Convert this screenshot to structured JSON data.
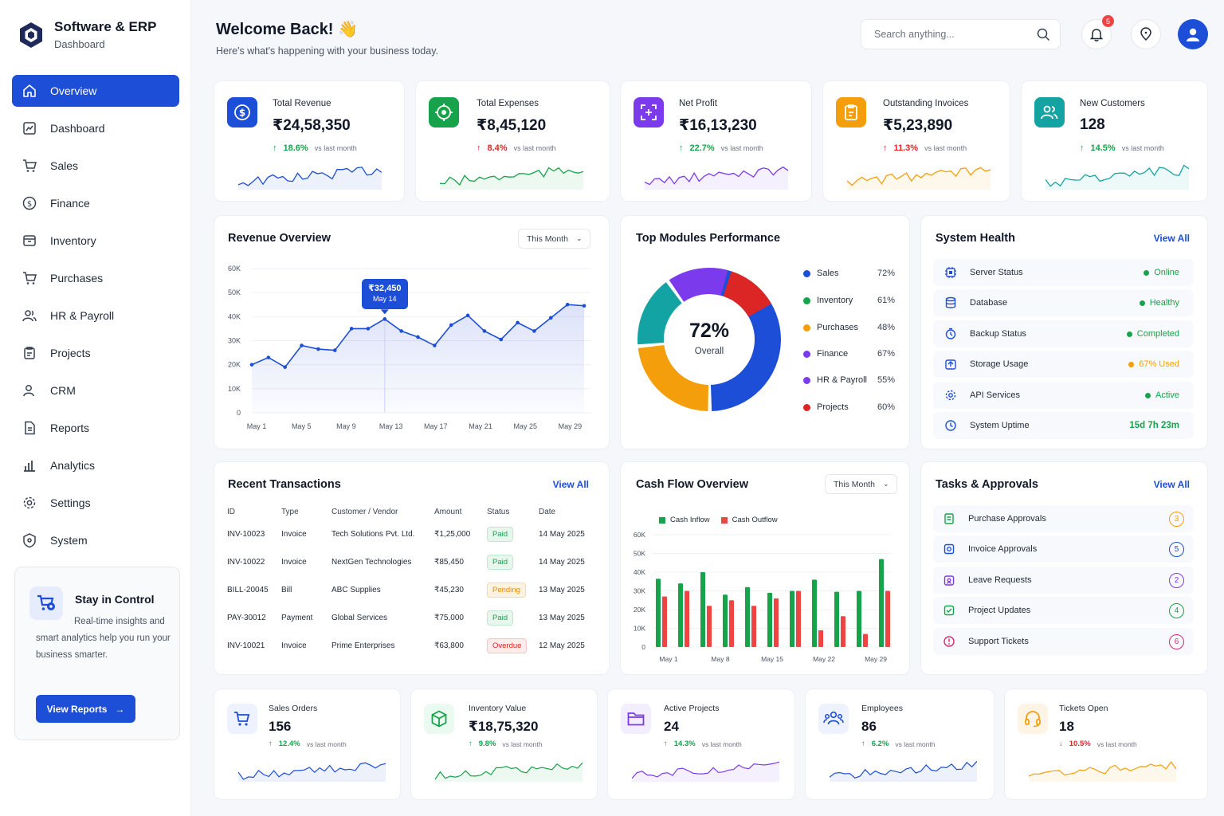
{
  "brand": {
    "title": "Software & ERP",
    "subtitle": "Dashboard"
  },
  "nav": [
    "Overview",
    "Dashboard",
    "Sales",
    "Finance",
    "Inventory",
    "Purchases",
    "HR & Payroll",
    "Projects",
    "CRM",
    "Reports",
    "Analytics",
    "Settings",
    "System"
  ],
  "promo": {
    "title": "Stay in Control",
    "text": "Real-time insights and smart analytics help you run your business smarter.",
    "button": "View Reports"
  },
  "header": {
    "welcome": "Welcome Back! 👋",
    "subtitle": "Here's what's happening with your business today.",
    "search_placeholder": "Search anything...",
    "notifications": "5"
  },
  "kpis": [
    {
      "label": "Total Revenue",
      "value": "₹24,58,350",
      "change": "18.6%",
      "dir": "up",
      "vs": "vs last month",
      "color": "#1d4ed8"
    },
    {
      "label": "Total Expenses",
      "value": "₹8,45,120",
      "change": "8.4%",
      "dir": "up-bad",
      "vs": "vs last month",
      "color": "#16a34a"
    },
    {
      "label": "Net Profit",
      "value": "₹16,13,230",
      "change": "22.7%",
      "dir": "up",
      "vs": "vs last month",
      "color": "#7c3aed"
    },
    {
      "label": "Outstanding Invoices",
      "value": "₹5,23,890",
      "change": "11.3%",
      "dir": "up-bad",
      "vs": "vs last month",
      "color": "#f59e0b"
    },
    {
      "label": "New Customers",
      "value": "128",
      "change": "14.5%",
      "dir": "up",
      "vs": "vs last month",
      "color": "#0d9488"
    }
  ],
  "revenue": {
    "title": "Revenue Overview",
    "period": "This Month",
    "tooltip_value": "₹32,450",
    "tooltip_date": "May 14"
  },
  "chart_data": [
    {
      "type": "line",
      "title": "Revenue Overview",
      "x_labels": [
        "May 1",
        "May 5",
        "May 9",
        "May 13",
        "May 17",
        "May 21",
        "May 25",
        "May 29"
      ],
      "y_ticks": [
        "0",
        "10K",
        "20K",
        "30K",
        "40K",
        "50K",
        "60K"
      ],
      "ylim": [
        0,
        60000
      ],
      "values": [
        20000,
        23000,
        19000,
        28000,
        26500,
        26000,
        35000,
        35000,
        39000,
        34000,
        31500,
        28000,
        36500,
        40500,
        34000,
        30500,
        37500,
        34000,
        39500,
        45000,
        44500
      ]
    },
    {
      "type": "pie",
      "title": "Top Modules Performance",
      "center_value": "72%",
      "center_label": "Overall",
      "slices": [
        {
          "name": "Sales",
          "value": 72,
          "color": "#1d4ed8"
        },
        {
          "name": "Inventory",
          "value": 61,
          "color": "#16a34a"
        },
        {
          "name": "Purchases",
          "value": 48,
          "color": "#f59e0b"
        },
        {
          "name": "Finance",
          "value": 67,
          "color": "#14a3a3"
        },
        {
          "name": "HR & Payroll",
          "value": 55,
          "color": "#7c3aed"
        },
        {
          "name": "Projects",
          "value": 60,
          "color": "#dc2626"
        }
      ]
    },
    {
      "type": "bar",
      "title": "Cash Flow Overview",
      "x_labels": [
        "May 1",
        "May 8",
        "May 15",
        "May 22",
        "May 29"
      ],
      "y_ticks": [
        "0",
        "10K",
        "20K",
        "30K",
        "40K",
        "50K",
        "60K"
      ],
      "ylim": [
        0,
        60000
      ],
      "series": [
        {
          "name": "Cash Inflow",
          "color": "#16a34a",
          "values": [
            36500,
            34000,
            40000,
            28000,
            32000,
            29000,
            30000,
            36000,
            29500,
            30000,
            47000
          ]
        },
        {
          "name": "Cash Outflow",
          "color": "#ef4444",
          "values": [
            27000,
            30000,
            22000,
            25000,
            22000,
            26000,
            30000,
            9000,
            16500,
            7000,
            30000
          ]
        }
      ]
    }
  ],
  "modules": [
    {
      "name": "Sales",
      "pct": "72%",
      "color": "#1d4ed8"
    },
    {
      "name": "Inventory",
      "pct": "61%",
      "color": "#16a34a"
    },
    {
      "name": "Purchases",
      "pct": "48%",
      "color": "#f59e0b"
    },
    {
      "name": "Finance",
      "pct": "67%",
      "color": "#7c3aed"
    },
    {
      "name": "HR & Payroll",
      "pct": "55%",
      "color": "#7c3aed"
    },
    {
      "name": "Projects",
      "pct": "60%",
      "color": "#dc2626"
    }
  ],
  "health": {
    "title": "System Health",
    "view_all": "View All",
    "rows": [
      {
        "name": "Server Status",
        "status": "Online",
        "color": "#16a34a"
      },
      {
        "name": "Database",
        "status": "Healthy",
        "color": "#16a34a"
      },
      {
        "name": "Backup Status",
        "status": "Completed",
        "color": "#16a34a"
      },
      {
        "name": "Storage Usage",
        "status": "67% Used",
        "color": "#f59e0b"
      },
      {
        "name": "API Services",
        "status": "Active",
        "color": "#16a34a"
      },
      {
        "name": "System Uptime",
        "status": "15d 7h 23m",
        "color": "#16a34a"
      }
    ]
  },
  "transactions": {
    "title": "Recent Transactions",
    "view_all": "View All",
    "headers": [
      "ID",
      "Type",
      "Customer / Vendor",
      "Amount",
      "Status",
      "Date"
    ],
    "rows": [
      [
        "INV-10023",
        "Invoice",
        "Tech Solutions Pvt. Ltd.",
        "₹1,25,000",
        "Paid",
        "14 May 2025"
      ],
      [
        "INV-10022",
        "Invoice",
        "NextGen Technologies",
        "₹85,450",
        "Paid",
        "14 May 2025"
      ],
      [
        "BILL-20045",
        "Bill",
        "ABC Supplies",
        "₹45,230",
        "Pending",
        "13 May 2025"
      ],
      [
        "PAY-30012",
        "Payment",
        "Global Services",
        "₹75,000",
        "Paid",
        "13 May 2025"
      ],
      [
        "INV-10021",
        "Invoice",
        "Prime Enterprises",
        "₹63,800",
        "Overdue",
        "12 May 2025"
      ]
    ]
  },
  "cashflow": {
    "title": "Cash Flow Overview",
    "period": "This Month",
    "legend": [
      "Cash Inflow",
      "Cash Outflow"
    ]
  },
  "tasks": {
    "title": "Tasks & Approvals",
    "view_all": "View All",
    "rows": [
      {
        "name": "Purchase Approvals",
        "count": "3",
        "color": "#f59e0b"
      },
      {
        "name": "Invoice Approvals",
        "count": "5",
        "color": "#1d4ed8"
      },
      {
        "name": "Leave Requests",
        "count": "2",
        "color": "#7c3aed"
      },
      {
        "name": "Project Updates",
        "count": "4",
        "color": "#16a34a"
      },
      {
        "name": "Support Tickets",
        "count": "6",
        "color": "#db2777"
      }
    ]
  },
  "bottom": [
    {
      "label": "Sales Orders",
      "value": "156",
      "change": "12.4%",
      "dir": "up",
      "vs": "vs last month",
      "color": "#1d4ed8"
    },
    {
      "label": "Inventory Value",
      "value": "₹18,75,320",
      "change": "9.8%",
      "dir": "up",
      "vs": "vs last month",
      "color": "#16a34a"
    },
    {
      "label": "Active Projects",
      "value": "24",
      "change": "14.3%",
      "dir": "up",
      "vs": "vs last month",
      "color": "#7c3aed"
    },
    {
      "label": "Employees",
      "value": "86",
      "change": "6.2%",
      "dir": "up",
      "vs": "vs last month",
      "color": "#1d4ed8"
    },
    {
      "label": "Tickets Open",
      "value": "18",
      "change": "10.5%",
      "dir": "down",
      "vs": "vs last month",
      "color": "#f59e0b"
    }
  ]
}
